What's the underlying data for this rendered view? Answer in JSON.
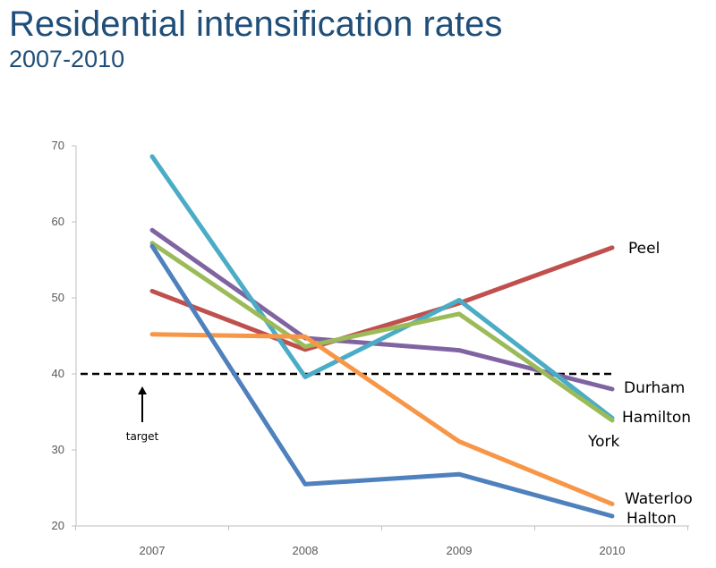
{
  "title": "Residential intensification rates",
  "subtitle": "2007-2010",
  "chart_data": {
    "type": "line",
    "title": "Residential intensification rates",
    "subtitle": "2007-2010",
    "xlabel": "",
    "ylabel": "",
    "categories": [
      "2007",
      "2008",
      "2009",
      "2010"
    ],
    "ylim": [
      20,
      70
    ],
    "yticks": [
      20,
      30,
      40,
      50,
      60,
      70
    ],
    "grid": false,
    "legend": "inline labels at right end of lines",
    "series": [
      {
        "name": "Peel",
        "color": "#c0504d",
        "values": [
          50.9,
          43.2,
          49.3,
          56.6
        ]
      },
      {
        "name": "Durham",
        "color": "#8064a2",
        "values": [
          58.9,
          44.7,
          43.1,
          38.0
        ]
      },
      {
        "name": "Hamilton",
        "color": "#4bacc6",
        "values": [
          68.6,
          39.6,
          49.7,
          34.2
        ]
      },
      {
        "name": "York",
        "color": "#9bbb59",
        "values": [
          57.2,
          43.6,
          47.9,
          33.9
        ]
      },
      {
        "name": "Waterloo",
        "color": "#f79646",
        "values": [
          45.2,
          44.9,
          31.1,
          22.9
        ]
      },
      {
        "name": "Halton",
        "color": "#4f81bd",
        "values": [
          56.8,
          25.5,
          26.8,
          21.3
        ]
      }
    ],
    "reference_line": {
      "value": 40,
      "style": "dashed",
      "color": "#000000"
    },
    "annotations": [
      {
        "text": "target",
        "at": "2007",
        "arrow": "up"
      }
    ]
  }
}
